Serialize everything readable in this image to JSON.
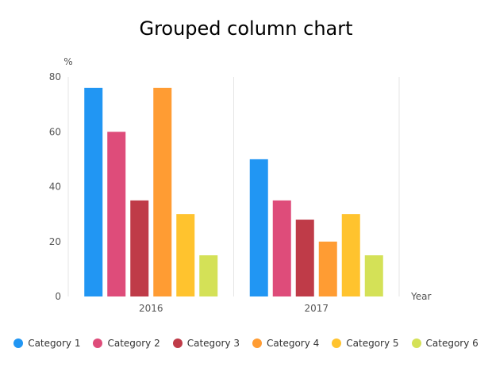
{
  "chart_data": {
    "type": "bar",
    "title": "Grouped column chart",
    "ylabel": "%",
    "xlabel": "Year",
    "categories": [
      "2016",
      "2017"
    ],
    "ylim": [
      0,
      80
    ],
    "yticks": [
      0,
      20,
      40,
      60,
      80
    ],
    "grid": "vertical separators between categories",
    "legend": "bottom",
    "series": [
      {
        "name": "Category 1",
        "color": "#2196f3",
        "values": [
          76,
          50
        ]
      },
      {
        "name": "Category 2",
        "color": "#de4c7a",
        "values": [
          60,
          35
        ]
      },
      {
        "name": "Category 3",
        "color": "#bf3b48",
        "values": [
          35,
          28
        ]
      },
      {
        "name": "Category 4",
        "color": "#ff9c33",
        "values": [
          76,
          20
        ]
      },
      {
        "name": "Category 5",
        "color": "#ffc32e",
        "values": [
          30,
          30
        ]
      },
      {
        "name": "Category 6",
        "color": "#d4e157",
        "values": [
          15,
          15
        ]
      }
    ]
  }
}
